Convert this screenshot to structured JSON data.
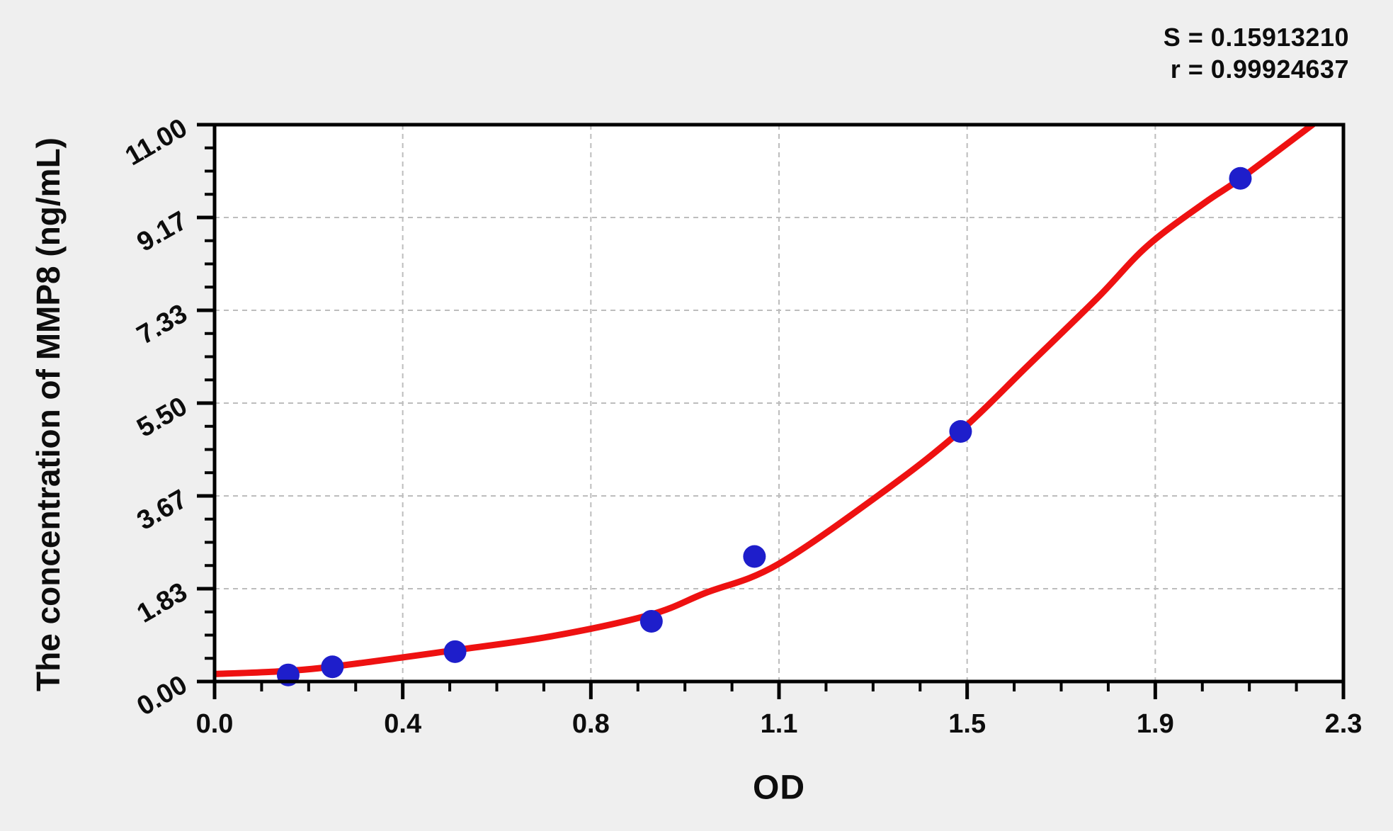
{
  "page": {
    "background_color": "#efefef",
    "plot_background_color": "#ffffff",
    "axis_color": "#000000"
  },
  "stats": {
    "s": "S = 0.15913210",
    "r": "r = 0.99924637"
  },
  "chart_data": {
    "type": "scatter",
    "title": "",
    "xlabel": "OD",
    "ylabel": "The concentration of MMP8 (ng/mL)",
    "xlim": [
      0,
      2.3
    ],
    "ylim": [
      0,
      11
    ],
    "x_tick_labels": [
      "0.0",
      "0.4",
      "0.8",
      "1.1",
      "1.5",
      "1.9",
      "2.3"
    ],
    "y_tick_labels": [
      "0.00",
      "1.83",
      "3.67",
      "5.50",
      "7.33",
      "9.17",
      "11.00"
    ],
    "minor_ticks_per_major": 3,
    "grid": {
      "show": true,
      "style": "dashed",
      "color": "#bdbdbd"
    },
    "legend": "none",
    "annotations": [
      "S = 0.15913210",
      "r = 0.99924637"
    ],
    "series": [
      {
        "name": "standard-points",
        "type": "scatter",
        "color": "#1e1ecb",
        "marker_radius_px": 16,
        "points": [
          [
            0.15,
            0.13
          ],
          [
            0.24,
            0.29
          ],
          [
            0.49,
            0.59
          ],
          [
            0.89,
            1.19
          ],
          [
            1.1,
            2.47
          ],
          [
            1.52,
            4.94
          ],
          [
            2.09,
            9.94
          ]
        ]
      },
      {
        "name": "fitted-curve",
        "type": "line",
        "color": "#ee1111",
        "stroke_width_px": 9,
        "points": [
          [
            0.0,
            0.15
          ],
          [
            0.13,
            0.2
          ],
          [
            0.245,
            0.3
          ],
          [
            0.49,
            0.62
          ],
          [
            0.69,
            0.9
          ],
          [
            0.888,
            1.32
          ],
          [
            1.0,
            1.75
          ],
          [
            1.147,
            2.31
          ],
          [
            1.371,
            3.81
          ],
          [
            1.522,
            4.97
          ],
          [
            1.655,
            6.22
          ],
          [
            1.8,
            7.59
          ],
          [
            1.9,
            8.6
          ],
          [
            2.016,
            9.45
          ],
          [
            2.091,
            9.94
          ],
          [
            2.237,
            11.0
          ]
        ]
      }
    ]
  }
}
